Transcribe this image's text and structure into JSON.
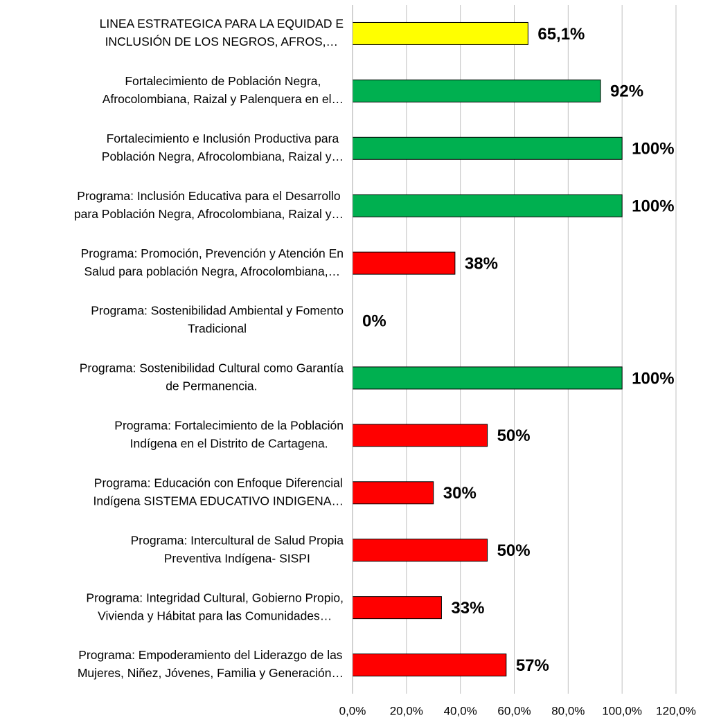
{
  "chart_data": {
    "type": "bar",
    "orientation": "horizontal",
    "categories": [
      [
        "LINEA ESTRATEGICA PARA LA EQUIDAD E",
        "INCLUSIÓN DE LOS NEGROS, AFROS,…"
      ],
      [
        "Fortalecimiento de Población Negra,",
        "Afrocolombiana, Raizal y Palenquera en el…"
      ],
      [
        "Fortalecimiento e Inclusión Productiva para",
        "Población Negra, Afrocolombiana, Raizal y…"
      ],
      [
        "Programa: Inclusión Educativa para el Desarrollo",
        "para Población Negra, Afrocolombiana, Raizal y…"
      ],
      [
        "Programa: Promoción, Prevención y Atención En",
        "Salud para población Negra, Afrocolombiana,…"
      ],
      [
        "Programa: Sostenibilidad Ambiental y Fomento",
        "Tradicional"
      ],
      [
        "Programa: Sostenibilidad Cultural como Garantía",
        "de Permanencia."
      ],
      [
        "Programa: Fortalecimiento de la Población",
        "Indígena en el Distrito de Cartagena."
      ],
      [
        "Programa: Educación con Enfoque Diferencial",
        "Indígena SISTEMA EDUCATIVO INDIGENA…"
      ],
      [
        "Programa: Intercultural de Salud Propia",
        "Preventiva Indígena- SISPI"
      ],
      [
        "Programa: Integridad Cultural, Gobierno Propio,",
        "Vivienda y Hábitat para las Comunidades…"
      ],
      [
        "Programa: Empoderamiento del Liderazgo de las",
        "Mujeres, Niñez, Jóvenes, Familia y Generación…"
      ]
    ],
    "values": [
      65.1,
      92,
      100,
      100,
      38,
      0,
      100,
      50,
      30,
      50,
      33,
      57
    ],
    "value_labels": [
      "65,1%",
      "92%",
      "100%",
      "100%",
      "38%",
      "0%",
      "100%",
      "50%",
      "30%",
      "50%",
      "33%",
      "57%"
    ],
    "colors": [
      "#ffff00",
      "#00b050",
      "#00b050",
      "#00b050",
      "#ff0000",
      "#ff0000",
      "#00b050",
      "#ff0000",
      "#ff0000",
      "#ff0000",
      "#ff0000",
      "#ff0000"
    ],
    "xlim": [
      0,
      120
    ],
    "xticks": [
      {
        "value": 0,
        "label": "0,0%"
      },
      {
        "value": 20,
        "label": "20,0%"
      },
      {
        "value": 40,
        "label": "40,0%"
      },
      {
        "value": 60,
        "label": "60,0%"
      },
      {
        "value": 80,
        "label": "80,0%"
      },
      {
        "value": 100,
        "label": "100,0%"
      },
      {
        "value": 120,
        "label": "120,0%"
      }
    ],
    "grid": true
  }
}
